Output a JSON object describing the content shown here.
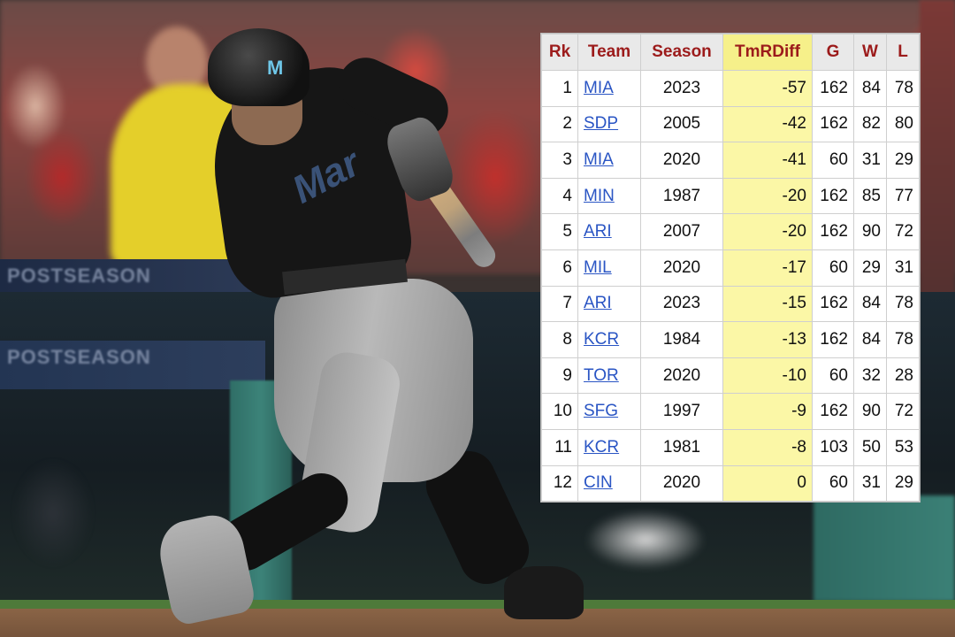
{
  "background": {
    "helmet_logo": "M",
    "jersey_text": "Mar",
    "banner_top": "POSTSEASON",
    "banner_mid": "POSTSEASON",
    "colors": {
      "header_text": "#9c1b1b",
      "sorted_column": "#fbf7a6",
      "link": "#2a55c4"
    }
  },
  "table": {
    "columns": [
      "Rk",
      "Team",
      "Season",
      "TmRDiff",
      "G",
      "W",
      "L"
    ],
    "sorted_column": "TmRDiff",
    "rows": [
      {
        "rk": "1",
        "team": "MIA",
        "season": "2023",
        "diff": "-57",
        "g": "162",
        "w": "84",
        "l": "78"
      },
      {
        "rk": "2",
        "team": "SDP",
        "season": "2005",
        "diff": "-42",
        "g": "162",
        "w": "82",
        "l": "80"
      },
      {
        "rk": "3",
        "team": "MIA",
        "season": "2020",
        "diff": "-41",
        "g": "60",
        "w": "31",
        "l": "29"
      },
      {
        "rk": "4",
        "team": "MIN",
        "season": "1987",
        "diff": "-20",
        "g": "162",
        "w": "85",
        "l": "77"
      },
      {
        "rk": "5",
        "team": "ARI",
        "season": "2007",
        "diff": "-20",
        "g": "162",
        "w": "90",
        "l": "72"
      },
      {
        "rk": "6",
        "team": "MIL",
        "season": "2020",
        "diff": "-17",
        "g": "60",
        "w": "29",
        "l": "31"
      },
      {
        "rk": "7",
        "team": "ARI",
        "season": "2023",
        "diff": "-15",
        "g": "162",
        "w": "84",
        "l": "78"
      },
      {
        "rk": "8",
        "team": "KCR",
        "season": "1984",
        "diff": "-13",
        "g": "162",
        "w": "84",
        "l": "78"
      },
      {
        "rk": "9",
        "team": "TOR",
        "season": "2020",
        "diff": "-10",
        "g": "60",
        "w": "32",
        "l": "28"
      },
      {
        "rk": "10",
        "team": "SFG",
        "season": "1997",
        "diff": "-9",
        "g": "162",
        "w": "90",
        "l": "72"
      },
      {
        "rk": "11",
        "team": "KCR",
        "season": "1981",
        "diff": "-8",
        "g": "103",
        "w": "50",
        "l": "53"
      },
      {
        "rk": "12",
        "team": "CIN",
        "season": "2020",
        "diff": "0",
        "g": "60",
        "w": "31",
        "l": "29"
      }
    ]
  }
}
